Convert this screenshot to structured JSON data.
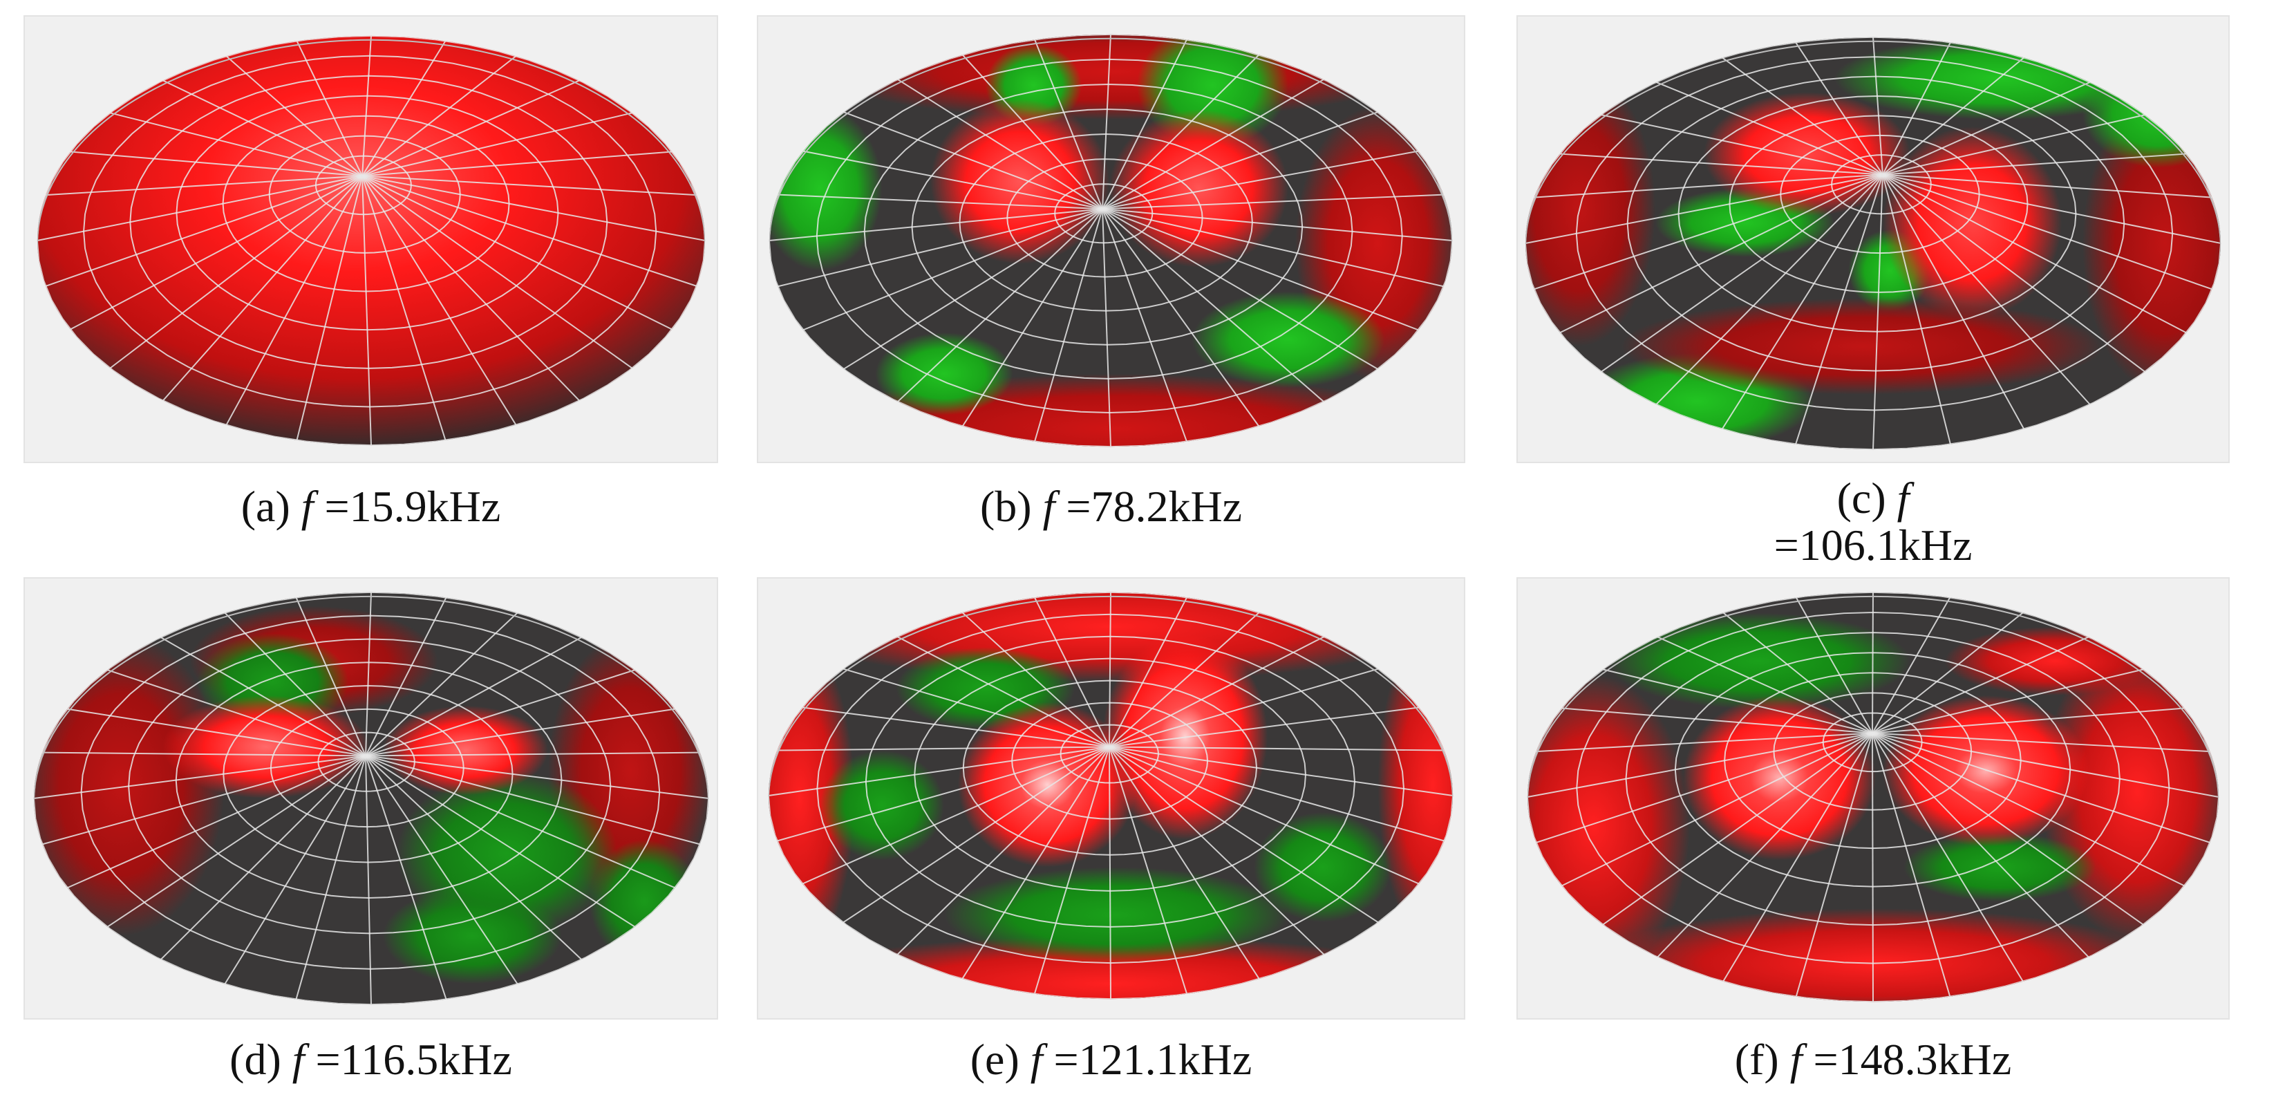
{
  "colors": {
    "red": "#ff1a1a",
    "dark": "#3a3838",
    "green": "#1aa51a",
    "mesh": "#e8e8e8",
    "panel_background": "#f0f0f0"
  },
  "panels": [
    {
      "id": "a",
      "label": "(a)",
      "f_symbol": "f",
      "value": "=15.9kHz"
    },
    {
      "id": "b",
      "label": "(b)",
      "f_symbol": "f",
      "value": "=78.2kHz"
    },
    {
      "id": "c",
      "label": "(c)",
      "f_symbol": "f",
      "value": "=106.1kHz"
    },
    {
      "id": "d",
      "label": "(d)",
      "f_symbol": "f",
      "value": "=116.5kHz"
    },
    {
      "id": "e",
      "label": "(e)",
      "f_symbol": "f",
      "value": "=121.1kHz"
    },
    {
      "id": "f",
      "label": "(f)",
      "f_symbol": "f",
      "value": "=148.3kHz"
    }
  ]
}
